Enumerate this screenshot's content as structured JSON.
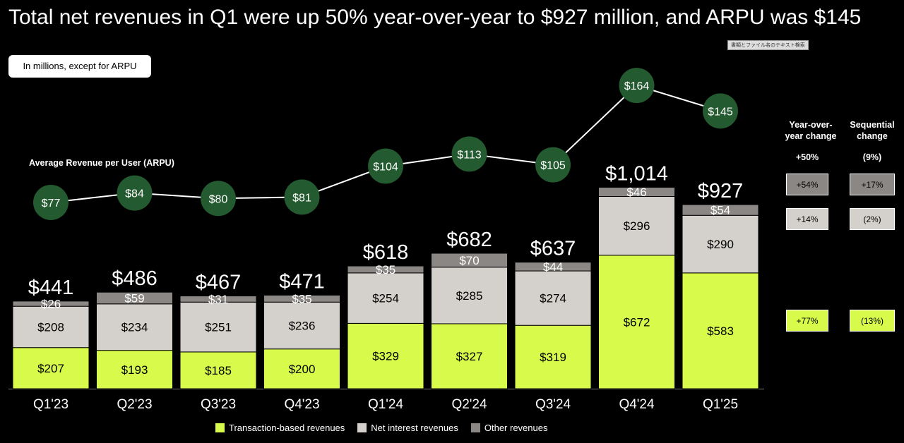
{
  "title": "Total net revenues in Q1 were up 50% year-over-year to $927 million, and ARPU was $145",
  "units_note": "In millions, except for ARPU",
  "tiny_tag": "書類とファイル名のテキスト検索",
  "arpu_label": "Average Revenue per User (ARPU)",
  "colors": {
    "transaction": "#d8fb4b",
    "interest": "#d4d1cc",
    "other": "#8a8784",
    "arpu_circle": "#235a2f"
  },
  "chart_data": {
    "type": "bar",
    "stacked": true,
    "categories": [
      "Q1'23",
      "Q2'23",
      "Q3'23",
      "Q4'23",
      "Q1'24",
      "Q2'24",
      "Q3'24",
      "Q4'24",
      "Q1'25"
    ],
    "series": [
      {
        "name": "Transaction-based revenues",
        "values": [
          207,
          193,
          185,
          200,
          329,
          327,
          319,
          672,
          583
        ],
        "labels": [
          "$207",
          "$193",
          "$185",
          "$200",
          "$329",
          "$327",
          "$319",
          "$672",
          "$583"
        ]
      },
      {
        "name": "Net interest revenues",
        "values": [
          208,
          234,
          251,
          236,
          254,
          285,
          274,
          296,
          290
        ],
        "labels": [
          "$208",
          "$234",
          "$251",
          "$236",
          "$254",
          "$285",
          "$274",
          "$296",
          "$290"
        ]
      },
      {
        "name": "Other revenues",
        "values": [
          26,
          59,
          31,
          35,
          35,
          70,
          44,
          46,
          54
        ],
        "labels": [
          "$26",
          "$59",
          "$31",
          "$35",
          "$35",
          "$70",
          "$44",
          "$46",
          "$54"
        ]
      }
    ],
    "totals": [
      441,
      486,
      467,
      471,
      618,
      682,
      637,
      1014,
      927
    ],
    "total_labels": [
      "$441",
      "$486",
      "$467",
      "$471",
      "$618",
      "$682",
      "$637",
      "$1,014",
      "$927"
    ],
    "arpu": {
      "name": "Average Revenue per User (ARPU)",
      "values": [
        77,
        84,
        80,
        81,
        104,
        113,
        105,
        164,
        145
      ],
      "labels": [
        "$77",
        "$84",
        "$80",
        "$81",
        "$104",
        "$113",
        "$105",
        "$164",
        "$145"
      ]
    }
  },
  "changes": {
    "yoy_header": "Year-over-year change",
    "seq_header": "Sequential change",
    "yoy_total": "+50%",
    "seq_total": "(9%)",
    "other": {
      "yoy": "+54%",
      "seq": "+17%"
    },
    "interest": {
      "yoy": "+14%",
      "seq": "(2%)"
    },
    "transaction": {
      "yoy": "+77%",
      "seq": "(13%)"
    }
  },
  "legend": [
    {
      "label": "Transaction-based revenues",
      "color": "#d8fb4b"
    },
    {
      "label": "Net interest revenues",
      "color": "#d4d1cc"
    },
    {
      "label": "Other revenues",
      "color": "#8a8784"
    }
  ]
}
